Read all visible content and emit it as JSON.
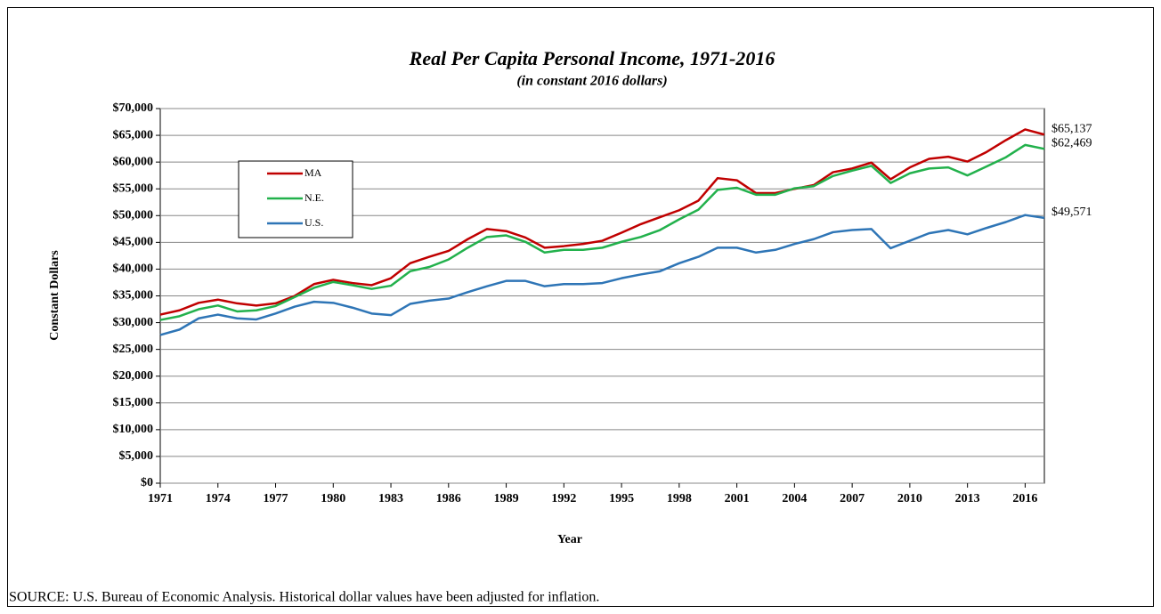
{
  "chart_data": {
    "type": "line",
    "title": "Real Per Capita Personal Income, 1971-2016",
    "subtitle": "(in constant 2016 dollars)",
    "y_label": "Constant  Dollars",
    "x_label": "Year",
    "source": "SOURCE:  U.S. Bureau of Economic Analysis. Historical dollar values have been adjusted for inflation.",
    "x": [
      1971,
      1972,
      1973,
      1974,
      1975,
      1976,
      1977,
      1978,
      1979,
      1980,
      1981,
      1982,
      1983,
      1984,
      1985,
      1986,
      1987,
      1988,
      1989,
      1990,
      1991,
      1992,
      1993,
      1994,
      1995,
      1996,
      1997,
      1998,
      1999,
      2000,
      2001,
      2002,
      2003,
      2004,
      2005,
      2006,
      2007,
      2008,
      2009,
      2010,
      2011,
      2012,
      2013,
      2014,
      2015,
      2016,
      2017
    ],
    "xlim": [
      1971,
      2017
    ],
    "xticks": [
      1971,
      1974,
      1977,
      1980,
      1983,
      1986,
      1989,
      1992,
      1995,
      1998,
      2001,
      2004,
      2007,
      2010,
      2013,
      2016
    ],
    "ylim": [
      0,
      70000
    ],
    "yticks": [
      {
        "value": 0,
        "label": "$0"
      },
      {
        "value": 5000,
        "label": "$5,000"
      },
      {
        "value": 10000,
        "label": "$10,000"
      },
      {
        "value": 15000,
        "label": "$15,000"
      },
      {
        "value": 20000,
        "label": "$20,000"
      },
      {
        "value": 25000,
        "label": "$25,000"
      },
      {
        "value": 30000,
        "label": "$30,000"
      },
      {
        "value": 35000,
        "label": "$35,000"
      },
      {
        "value": 40000,
        "label": "$40,000"
      },
      {
        "value": 45000,
        "label": "$45,000"
      },
      {
        "value": 50000,
        "label": "$50,000"
      },
      {
        "value": 55000,
        "label": "$55,000"
      },
      {
        "value": 60000,
        "label": "$60,000"
      },
      {
        "value": 65000,
        "label": "$65,000"
      },
      {
        "value": 70000,
        "label": "$70,000"
      }
    ],
    "grid": true,
    "legend": "upper left",
    "series": [
      {
        "name": "MA",
        "color": "#c00000",
        "values": [
          31500,
          32300,
          33700,
          34300,
          33600,
          33200,
          33600,
          35000,
          37200,
          38000,
          37400,
          37000,
          38300,
          41100,
          42300,
          43400,
          45600,
          47500,
          47100,
          45900,
          44000,
          44300,
          44700,
          45300,
          46800,
          48400,
          49700,
          51000,
          52800,
          57000,
          56600,
          54200,
          54200,
          55000,
          55700,
          58100,
          58800,
          59900,
          56800,
          59000,
          60600,
          61000,
          60100,
          61900,
          64100,
          66100,
          65137
        ],
        "value_labels": [
          null,
          null,
          null,
          null,
          null,
          null,
          null,
          null,
          null,
          null,
          null,
          null,
          null,
          null,
          null,
          null,
          null,
          null,
          null,
          null,
          null,
          null,
          null,
          null,
          null,
          null,
          null,
          null,
          null,
          null,
          null,
          null,
          null,
          null,
          null,
          null,
          null,
          null,
          null,
          null,
          null,
          null,
          null,
          null,
          null,
          null,
          "$65,137"
        ]
      },
      {
        "name": "N.E.",
        "color": "#22b14c",
        "values": [
          30500,
          31200,
          32500,
          33200,
          32100,
          32300,
          33100,
          34800,
          36500,
          37600,
          37000,
          36300,
          36900,
          39600,
          40400,
          41800,
          44000,
          46000,
          46300,
          45100,
          43100,
          43600,
          43600,
          44000,
          45100,
          46000,
          47300,
          49300,
          51100,
          54800,
          55200,
          53900,
          53900,
          55100,
          55500,
          57400,
          58400,
          59300,
          56100,
          57900,
          58800,
          59000,
          57500,
          59200,
          60900,
          63200,
          62469
        ],
        "value_labels": [
          null,
          null,
          null,
          null,
          null,
          null,
          null,
          null,
          null,
          null,
          null,
          null,
          null,
          null,
          null,
          null,
          null,
          null,
          null,
          null,
          null,
          null,
          null,
          null,
          null,
          null,
          null,
          null,
          null,
          null,
          null,
          null,
          null,
          null,
          null,
          null,
          null,
          null,
          null,
          null,
          null,
          null,
          null,
          null,
          null,
          null,
          "$62,469"
        ]
      },
      {
        "name": "U.S.",
        "color": "#2e75b6",
        "values": [
          27700,
          28700,
          30800,
          31500,
          30800,
          30600,
          31700,
          33000,
          33900,
          33700,
          32800,
          31700,
          31400,
          33500,
          34100,
          34500,
          35700,
          36800,
          37800,
          37800,
          36800,
          37200,
          37200,
          37400,
          38300,
          39000,
          39600,
          41100,
          42300,
          44000,
          44000,
          43100,
          43600,
          44700,
          45600,
          46900,
          47300,
          47500,
          43900,
          45300,
          46700,
          47300,
          46500,
          47700,
          48800,
          50100,
          49571
        ],
        "value_labels": [
          null,
          null,
          null,
          null,
          null,
          null,
          null,
          null,
          null,
          null,
          null,
          null,
          null,
          null,
          null,
          null,
          null,
          null,
          null,
          null,
          null,
          null,
          null,
          null,
          null,
          null,
          null,
          null,
          null,
          null,
          null,
          null,
          null,
          null,
          null,
          null,
          null,
          null,
          null,
          null,
          null,
          null,
          null,
          null,
          null,
          null,
          "$49,571"
        ]
      }
    ]
  }
}
